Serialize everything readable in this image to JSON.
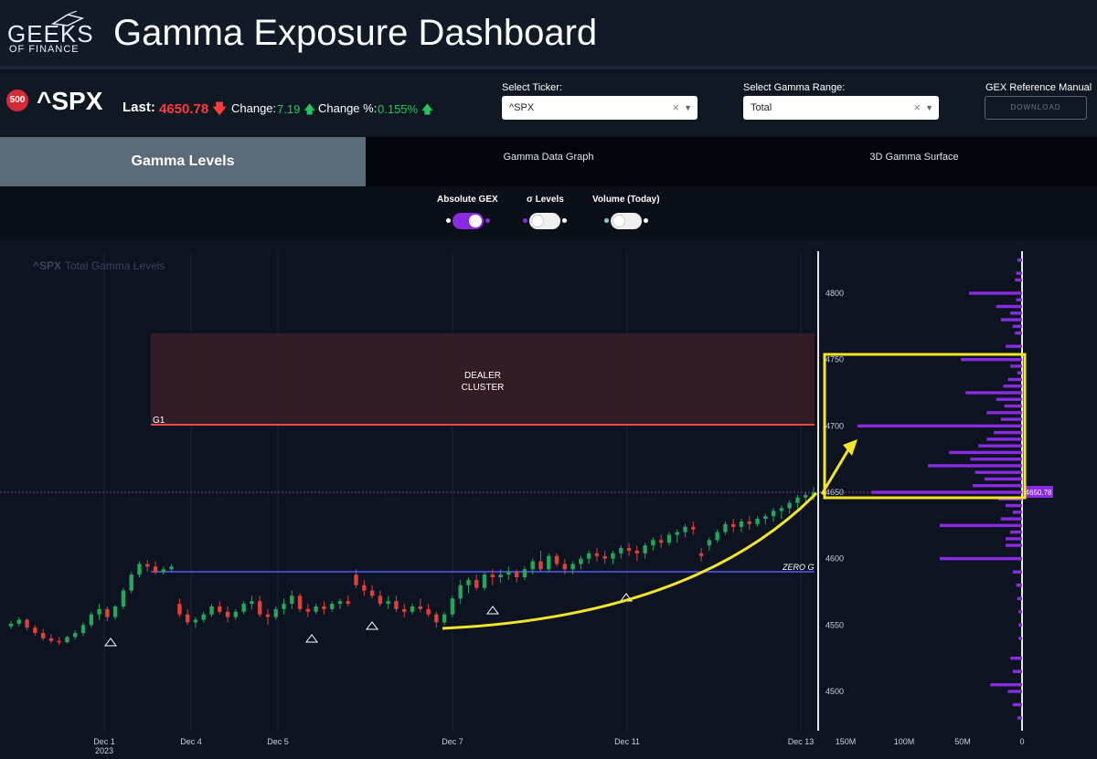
{
  "header": {
    "logo_line1": "GEEKS",
    "logo_line2": "OF FINANCE",
    "title": "Gamma Exposure Dashboard"
  },
  "quote": {
    "badge": "500",
    "symbol": "^SPX",
    "last_label": "Last:",
    "last_value": "4650.78",
    "last_arrow": "down",
    "change_label": "Change:",
    "change_value": "7.19",
    "change_pct_label": "Change %:",
    "change_pct_value": "0.155%"
  },
  "controls": {
    "ticker_label": "Select Ticker:",
    "ticker_value": "^SPX",
    "range_label": "Select Gamma Range:",
    "range_value": "Total",
    "manual_label": "GEX Reference Manual",
    "download_label": "DOWNLOAD"
  },
  "tabs": [
    {
      "label": "Gamma Levels",
      "active": true
    },
    {
      "label": "Gamma Data Graph",
      "active": false
    },
    {
      "label": "3D Gamma Surface",
      "active": false
    }
  ],
  "toggles": [
    {
      "label": "Absolute GEX",
      "on": true
    },
    {
      "label": "σ Levels",
      "on": false
    },
    {
      "label": "Volume (Today)",
      "on": false
    }
  ],
  "chart": {
    "title_symbol": "^SPX",
    "title_rest": "Total Gamma Levels",
    "cluster_label_1": "DEALER",
    "cluster_label_2": "CLUSTER",
    "g1_label": "G1",
    "zero_g_label": "ZERO G",
    "price_tag": "4650.78",
    "colors": {
      "accent": "#8a2be2",
      "up": "#26a65b",
      "down": "#e0403a",
      "zero_g": "#3f48cc",
      "g1": "#e84a4a",
      "highlight": "#f2e52a"
    }
  },
  "chart_data": {
    "type": "candlestick",
    "title": "^SPX Total Gamma Levels",
    "x_ticks": [
      "Dec 1\n2023",
      "Dec 4",
      "Dec 5",
      "Dec 7",
      "Dec 11",
      "Dec 13"
    ],
    "y_ticks": [
      4500,
      4550,
      4600,
      4650,
      4700,
      4750,
      4800
    ],
    "ylim": [
      4465,
      4810
    ],
    "levels": {
      "G1": 4700,
      "ZERO G": 4590,
      "dealer_cluster": [
        4700,
        4768
      ],
      "last": 4650.78
    },
    "gex_axis_ticks": [
      "150M",
      "100M",
      "50M",
      "0"
    ],
    "gex_profile": [
      {
        "strike": 4825,
        "gex": 4
      },
      {
        "strike": 4815,
        "gex": 5
      },
      {
        "strike": 4810,
        "gex": 6
      },
      {
        "strike": 4800,
        "gex": 45
      },
      {
        "strike": 4795,
        "gex": 5
      },
      {
        "strike": 4790,
        "gex": 22
      },
      {
        "strike": 4785,
        "gex": 10
      },
      {
        "strike": 4780,
        "gex": 18
      },
      {
        "strike": 4775,
        "gex": 8
      },
      {
        "strike": 4770,
        "gex": 6
      },
      {
        "strike": 4760,
        "gex": 14
      },
      {
        "strike": 4750,
        "gex": 52
      },
      {
        "strike": 4745,
        "gex": 10
      },
      {
        "strike": 4740,
        "gex": 4
      },
      {
        "strike": 4735,
        "gex": 12
      },
      {
        "strike": 4730,
        "gex": 16
      },
      {
        "strike": 4725,
        "gex": 48
      },
      {
        "strike": 4720,
        "gex": 22
      },
      {
        "strike": 4715,
        "gex": 15
      },
      {
        "strike": 4710,
        "gex": 30
      },
      {
        "strike": 4705,
        "gex": 18
      },
      {
        "strike": 4700,
        "gex": 140
      },
      {
        "strike": 4695,
        "gex": 24
      },
      {
        "strike": 4690,
        "gex": 30
      },
      {
        "strike": 4685,
        "gex": 37
      },
      {
        "strike": 4680,
        "gex": 62
      },
      {
        "strike": 4675,
        "gex": 44
      },
      {
        "strike": 4670,
        "gex": 80
      },
      {
        "strike": 4665,
        "gex": 40
      },
      {
        "strike": 4660,
        "gex": 32
      },
      {
        "strike": 4655,
        "gex": 42
      },
      {
        "strike": 4650,
        "gex": 128
      },
      {
        "strike": 4645,
        "gex": 20
      },
      {
        "strike": 4640,
        "gex": 14
      },
      {
        "strike": 4635,
        "gex": 8
      },
      {
        "strike": 4630,
        "gex": 18
      },
      {
        "strike": 4625,
        "gex": 70
      },
      {
        "strike": 4620,
        "gex": 10
      },
      {
        "strike": 4615,
        "gex": 14
      },
      {
        "strike": 4610,
        "gex": 14
      },
      {
        "strike": 4600,
        "gex": 70
      },
      {
        "strike": 4590,
        "gex": 8
      },
      {
        "strike": 4580,
        "gex": 5
      },
      {
        "strike": 4570,
        "gex": 4
      },
      {
        "strike": 4560,
        "gex": 3
      },
      {
        "strike": 4550,
        "gex": 3
      },
      {
        "strike": 4540,
        "gex": 3
      },
      {
        "strike": 4525,
        "gex": 10
      },
      {
        "strike": 4515,
        "gex": 8
      },
      {
        "strike": 4505,
        "gex": 27
      },
      {
        "strike": 4500,
        "gex": 12
      },
      {
        "strike": 4490,
        "gex": 8
      },
      {
        "strike": 4480,
        "gex": 4
      }
    ],
    "candles": [
      [
        4549,
        4553,
        4547,
        4551
      ],
      [
        4551,
        4556,
        4549,
        4554
      ],
      [
        4554,
        4555,
        4546,
        4548
      ],
      [
        4548,
        4550,
        4542,
        4544
      ],
      [
        4544,
        4547,
        4538,
        4540
      ],
      [
        4540,
        4543,
        4536,
        4538
      ],
      [
        4538,
        4541,
        4535,
        4537
      ],
      [
        4537,
        4542,
        4536,
        4541
      ],
      [
        4541,
        4546,
        4539,
        4544
      ],
      [
        4544,
        4552,
        4542,
        4550
      ],
      [
        4550,
        4560,
        4548,
        4558
      ],
      [
        4558,
        4566,
        4554,
        4562
      ],
      [
        4562,
        4564,
        4553,
        4556
      ],
      [
        4556,
        4565,
        4554,
        4564
      ],
      [
        4564,
        4578,
        4562,
        4576
      ],
      [
        4576,
        4590,
        4574,
        4588
      ],
      [
        4588,
        4598,
        4586,
        4596
      ],
      [
        4596,
        4599,
        4590,
        4594
      ],
      [
        4594,
        4598,
        4588,
        4590
      ],
      [
        4590,
        4594,
        4588,
        4592
      ],
      [
        4592,
        4596,
        4590,
        4594
      ],
      [
        4566,
        4570,
        4556,
        4558
      ],
      [
        4558,
        4562,
        4550,
        4552
      ],
      [
        4552,
        4556,
        4548,
        4554
      ],
      [
        4554,
        4560,
        4552,
        4558
      ],
      [
        4558,
        4566,
        4556,
        4564
      ],
      [
        4564,
        4568,
        4558,
        4560
      ],
      [
        4560,
        4564,
        4552,
        4556
      ],
      [
        4556,
        4562,
        4554,
        4560
      ],
      [
        4560,
        4568,
        4558,
        4566
      ],
      [
        4566,
        4572,
        4562,
        4568
      ],
      [
        4568,
        4572,
        4556,
        4558
      ],
      [
        4558,
        4562,
        4550,
        4556
      ],
      [
        4556,
        4564,
        4554,
        4562
      ],
      [
        4562,
        4570,
        4558,
        4566
      ],
      [
        4566,
        4576,
        4562,
        4572
      ],
      [
        4572,
        4574,
        4560,
        4562
      ],
      [
        4562,
        4566,
        4556,
        4560
      ],
      [
        4560,
        4566,
        4558,
        4564
      ],
      [
        4564,
        4568,
        4558,
        4562
      ],
      [
        4562,
        4568,
        4560,
        4566
      ],
      [
        4566,
        4570,
        4562,
        4568
      ],
      [
        4568,
        4572,
        4564,
        4566
      ],
      [
        4588,
        4592,
        4578,
        4580
      ],
      [
        4580,
        4584,
        4572,
        4576
      ],
      [
        4576,
        4580,
        4570,
        4572
      ],
      [
        4572,
        4576,
        4564,
        4566
      ],
      [
        4566,
        4572,
        4562,
        4568
      ],
      [
        4568,
        4572,
        4560,
        4562
      ],
      [
        4562,
        4566,
        4556,
        4560
      ],
      [
        4560,
        4566,
        4558,
        4564
      ],
      [
        4564,
        4570,
        4560,
        4562
      ],
      [
        4562,
        4566,
        4556,
        4558
      ],
      [
        4558,
        4560,
        4548,
        4552
      ],
      [
        4552,
        4560,
        4550,
        4558
      ],
      [
        4558,
        4572,
        4556,
        4570
      ],
      [
        4570,
        4584,
        4566,
        4580
      ],
      [
        4580,
        4586,
        4574,
        4584
      ],
      [
        4584,
        4588,
        4576,
        4578
      ],
      [
        4578,
        4590,
        4576,
        4588
      ],
      [
        4588,
        4592,
        4580,
        4586
      ],
      [
        4586,
        4592,
        4582,
        4588
      ],
      [
        4588,
        4594,
        4584,
        4590
      ],
      [
        4590,
        4592,
        4582,
        4586
      ],
      [
        4586,
        4594,
        4584,
        4592
      ],
      [
        4592,
        4600,
        4588,
        4598
      ],
      [
        4598,
        4606,
        4590,
        4592
      ],
      [
        4592,
        4604,
        4590,
        4602
      ],
      [
        4602,
        4604,
        4594,
        4596
      ],
      [
        4596,
        4600,
        4588,
        4592
      ],
      [
        4592,
        4598,
        4588,
        4596
      ],
      [
        4596,
        4602,
        4592,
        4600
      ],
      [
        4600,
        4606,
        4596,
        4604
      ],
      [
        4604,
        4608,
        4598,
        4602
      ],
      [
        4602,
        4606,
        4596,
        4600
      ],
      [
        4600,
        4606,
        4596,
        4604
      ],
      [
        4604,
        4610,
        4600,
        4608
      ],
      [
        4608,
        4612,
        4602,
        4606
      ],
      [
        4606,
        4610,
        4598,
        4604
      ],
      [
        4604,
        4612,
        4600,
        4610
      ],
      [
        4610,
        4616,
        4606,
        4614
      ],
      [
        4614,
        4618,
        4608,
        4612
      ],
      [
        4612,
        4620,
        4610,
        4618
      ],
      [
        4618,
        4622,
        4612,
        4620
      ],
      [
        4620,
        4626,
        4616,
        4624
      ],
      [
        4624,
        4628,
        4618,
        4622
      ],
      [
        4604,
        4608,
        4598,
        4602
      ],
      [
        4610,
        4616,
        4606,
        4614
      ],
      [
        4614,
        4622,
        4612,
        4620
      ],
      [
        4620,
        4628,
        4618,
        4626
      ],
      [
        4626,
        4630,
        4620,
        4624
      ],
      [
        4624,
        4630,
        4620,
        4628
      ],
      [
        4628,
        4632,
        4622,
        4626
      ],
      [
        4626,
        4632,
        4624,
        4630
      ],
      [
        4630,
        4634,
        4626,
        4632
      ],
      [
        4632,
        4638,
        4628,
        4636
      ],
      [
        4636,
        4640,
        4630,
        4638
      ],
      [
        4638,
        4644,
        4634,
        4642
      ],
      [
        4642,
        4648,
        4638,
        4646
      ],
      [
        4646,
        4650,
        4642,
        4648
      ],
      [
        4648,
        4654,
        4644,
        4650
      ]
    ]
  }
}
